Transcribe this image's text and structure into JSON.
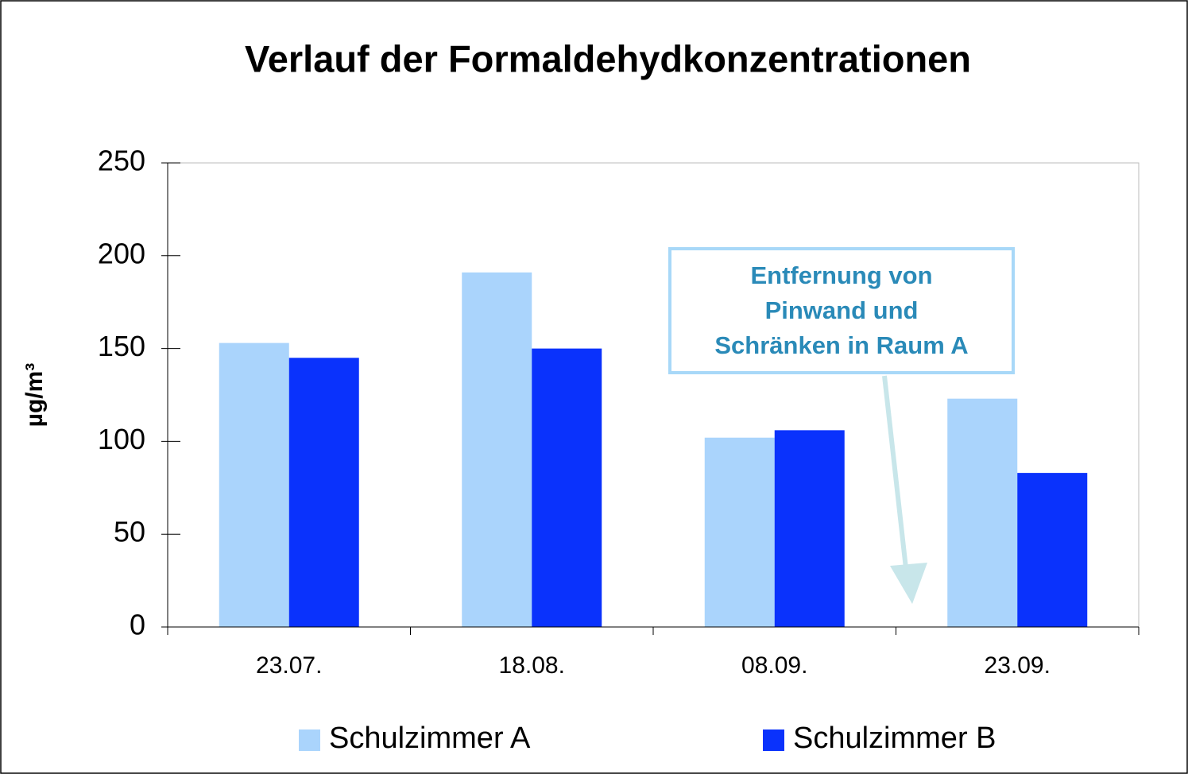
{
  "chart_data": {
    "type": "bar",
    "title": "Verlauf der Formaldehydkonzentrationen",
    "y_label": "µg/m³",
    "categories": [
      "23.07.",
      "18.08.",
      "08.09.",
      "23.09."
    ],
    "series": [
      {
        "name": "Schulzimmer A",
        "color": "#aad4fc",
        "values": [
          153,
          191,
          102,
          123
        ]
      },
      {
        "name": "Schulzimmer B",
        "color": "#0a32fc",
        "values": [
          145,
          150,
          106,
          83
        ]
      }
    ],
    "ylim": [
      0,
      250
    ],
    "yticks": [
      0,
      50,
      100,
      150,
      200,
      250
    ],
    "annotation": [
      "Entfernung von",
      "Pinwand und",
      "Schränken in Raum A"
    ]
  }
}
